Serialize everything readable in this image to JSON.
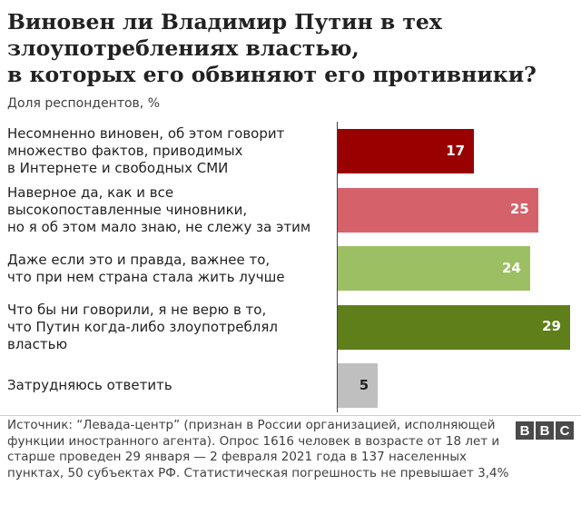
{
  "title": "Виновен ли Владимир Путин в тех\nзлоупотреблениях властью,\nв которых его обвиняют его противники?",
  "subtitle": "Доля респондентов, %",
  "chart_data": {
    "type": "bar",
    "orientation": "horizontal",
    "categories": [
      "Несомненно виновен, об этом говорит\nмножество фактов, приводимых\nв Интернете и свободных СМИ",
      "Наверное да, как и все\nвысокопоставленные чиновники,\nно я об этом мало знаю, не слежу за этим",
      "Даже если это и правда, важнее то,\nчто при нем страна стала жить лучше",
      "Что бы ни говорили, я не верю в то,\nчто Путин когда-либо злоупотреблял\nвластью",
      "Затрудняюсь ответить"
    ],
    "values": [
      17,
      25,
      24,
      29,
      5
    ],
    "colors": [
      "#990000",
      "#d5626a",
      "#9dbf63",
      "#5f7f1a",
      "#bfbfbf"
    ],
    "value_label_colors": [
      "#ffffff",
      "#ffffff",
      "#ffffff",
      "#ffffff",
      "#222222"
    ],
    "xlim": [
      0,
      29
    ]
  },
  "source": "Источник: “Левада-центр” (признан в России организацией, исполняющей функции иностранного агента). Опрос 1616 человек в возрасте от 18 лет и старше проведен 29 января — 2 февраля 2021 года в 137 населенных пунктах, 50 субъектах РФ. Статистическая погрешность не превышает 3,4%",
  "logo": {
    "letters": [
      "B",
      "B",
      "C"
    ]
  }
}
